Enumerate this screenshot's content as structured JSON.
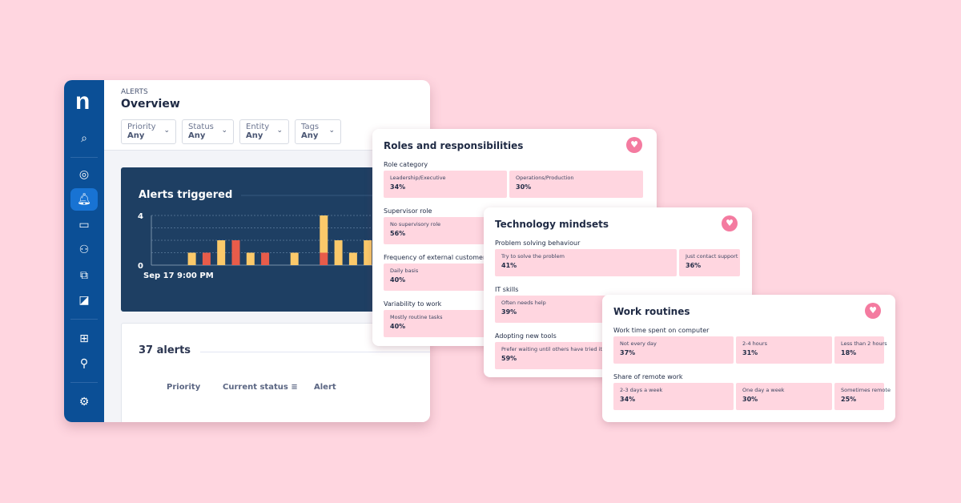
{
  "app": {
    "logo": "n",
    "breadcrumb": "ALERTS",
    "title": "Overview"
  },
  "sidebar": {
    "icons": [
      "search-sparkle-icon",
      "compass-icon",
      "bell-icon",
      "monitor-chart-icon",
      "users-screen-icon",
      "devices-icon",
      "edit-screen-icon",
      "grid-icon",
      "fingerprint-search-icon",
      "robot-arm-icon"
    ],
    "active": "bell-icon"
  },
  "filters": [
    {
      "label": "Priority",
      "value": "Any"
    },
    {
      "label": "Status",
      "value": "Any"
    },
    {
      "label": "Entity",
      "value": "Any"
    },
    {
      "label": "Tags",
      "value": "Any"
    }
  ],
  "chart_data": {
    "type": "bar",
    "stacked": true,
    "title": "Alerts triggered",
    "start_label": "Sep 17 9:00 PM",
    "ylim": [
      0,
      4
    ],
    "yticks": [
      0,
      4
    ],
    "grid": true,
    "series": [
      {
        "color": "#fbc96a",
        "values": [
          0,
          0,
          1,
          0,
          2,
          0,
          1,
          0,
          0,
          1,
          0,
          3,
          2,
          1,
          2
        ]
      },
      {
        "color": "#e85c4a",
        "values": [
          0,
          0,
          0,
          1,
          0,
          2,
          0,
          1,
          0,
          0,
          0,
          1,
          0,
          0,
          0
        ]
      }
    ]
  },
  "alerts": {
    "count": "37 alerts",
    "columns": [
      "Priority",
      "Current status",
      "Alert"
    ]
  },
  "cards": [
    {
      "title": "Roles and responsibilities",
      "sections": [
        {
          "question": "Role category",
          "options": [
            {
              "label": "Leadership/Executive",
              "pct": "34%"
            },
            {
              "label": "Operations/Production",
              "pct": "30%"
            }
          ]
        },
        {
          "question": "Supervisor role",
          "options": [
            {
              "label": "No supervisory role",
              "pct": "56%"
            }
          ]
        },
        {
          "question": "Frequency of external customer work",
          "options": [
            {
              "label": "Daily basis",
              "pct": "40%"
            }
          ]
        },
        {
          "question": "Variability to work",
          "options": [
            {
              "label": "Mostly routine tasks",
              "pct": "40%"
            }
          ]
        }
      ]
    },
    {
      "title": "Technology mindsets",
      "sections": [
        {
          "question": "Problem solving behaviour",
          "options": [
            {
              "label": "Try to solve the problem",
              "pct": "41%"
            },
            {
              "label": "Just contact support",
              "pct": "36%"
            }
          ]
        },
        {
          "question": "IT skills",
          "options": [
            {
              "label": "Often needs help",
              "pct": "39%"
            }
          ]
        },
        {
          "question": "Adopting new tools",
          "options": [
            {
              "label": "Prefer waiting until others have tried it",
              "pct": "59%"
            }
          ]
        }
      ]
    },
    {
      "title": "Work routines",
      "sections": [
        {
          "question": "Work time spent on computer",
          "options": [
            {
              "label": "Not every day",
              "pct": "37%"
            },
            {
              "label": "2-4 hours",
              "pct": "31%"
            },
            {
              "label": "Less than 2 hours",
              "pct": "18%"
            }
          ]
        },
        {
          "question": "Share of remote work",
          "options": [
            {
              "label": "2-3 days a week",
              "pct": "34%"
            },
            {
              "label": "One day a week",
              "pct": "30%"
            },
            {
              "label": "Sometimes remote",
              "pct": "25%"
            }
          ]
        }
      ]
    }
  ]
}
